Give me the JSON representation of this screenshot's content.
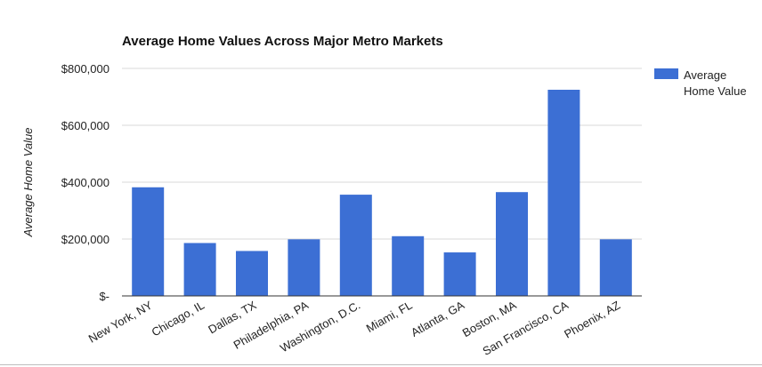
{
  "chart_data": {
    "type": "bar",
    "title": "Average Home Values Across Major Metro Markets",
    "xlabel": "",
    "ylabel": "Average Home Value",
    "categories": [
      "New York, NY",
      "Chicago, IL",
      "Dallas, TX",
      "Philadelphia, PA",
      "Washington, D.C.",
      "Miami, FL",
      "Atlanta, GA",
      "Boston, MA",
      "San Francisco, CA",
      "Phoenix, AZ"
    ],
    "series": [
      {
        "name": "Average Home Value",
        "values": [
          382000,
          186000,
          158000,
          199000,
          356000,
          210000,
          153000,
          365000,
          725000,
          199000
        ]
      }
    ],
    "ylim": [
      0,
      800000
    ],
    "yticks": [
      0,
      200000,
      400000,
      600000,
      800000
    ],
    "ytick_labels": [
      "$-",
      "$200,000",
      "$400,000",
      "$600,000",
      "$800,000"
    ],
    "grid": true,
    "legend_position": "right-top",
    "colors": {
      "bar": "#3c6fd4",
      "grid": "#d9d9d9",
      "axis": "#333333",
      "text": "#222222"
    }
  }
}
